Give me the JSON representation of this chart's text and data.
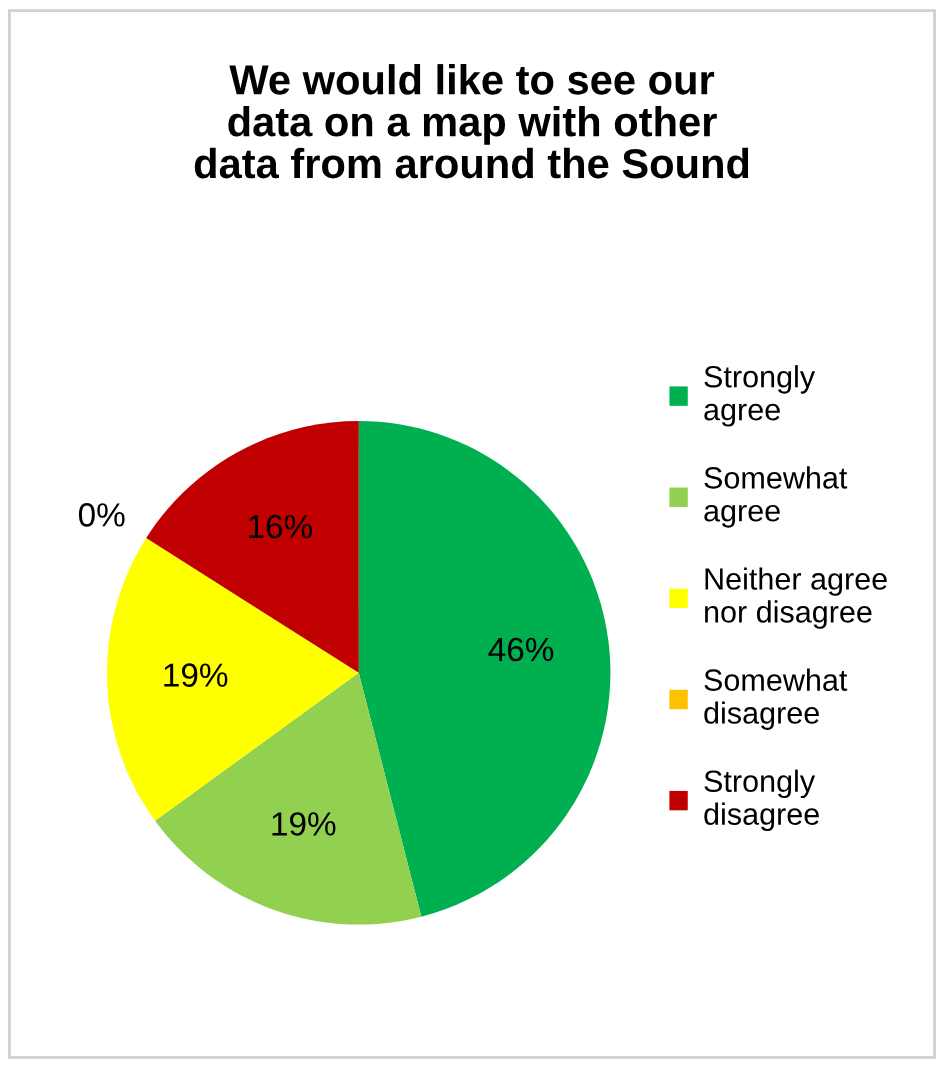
{
  "chart_data": {
    "type": "pie",
    "title": "We would like to see our data on a map with other data from around the Sound",
    "categories": [
      "Strongly agree",
      "Somewhat agree",
      "Neither agree nor disagree",
      "Somewhat disagree",
      "Strongly disagree"
    ],
    "values": [
      46,
      19,
      19,
      0,
      16
    ],
    "colors": [
      "#00b050",
      "#92d050",
      "#ffff00",
      "#ffc000",
      "#c00000"
    ],
    "value_labels": [
      "46%",
      "19%",
      "19%",
      "0%",
      "16%"
    ],
    "legend": "right"
  }
}
